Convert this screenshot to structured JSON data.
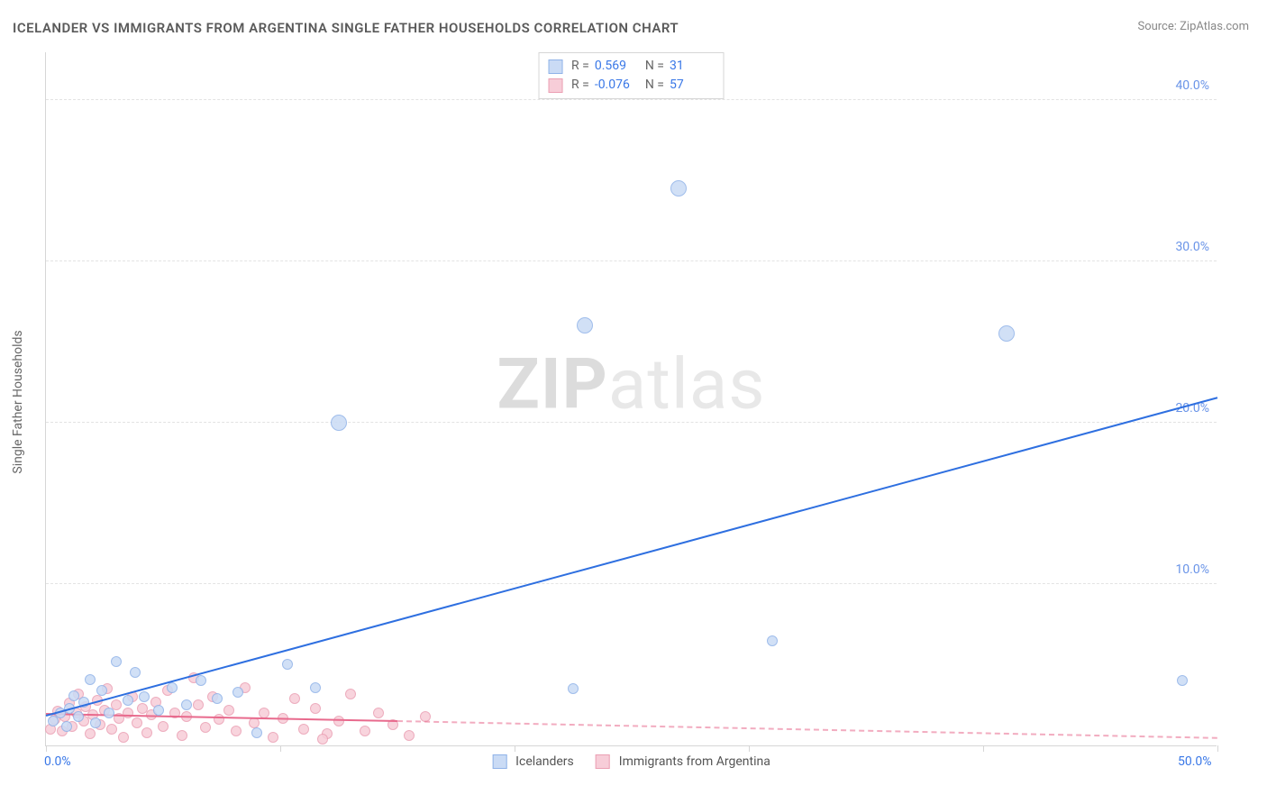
{
  "title": "ICELANDER VS IMMIGRANTS FROM ARGENTINA SINGLE FATHER HOUSEHOLDS CORRELATION CHART",
  "source_prefix": "Source: ",
  "source_name": "ZipAtlas.com",
  "y_axis_title": "Single Father Households",
  "watermark_bold": "ZIP",
  "watermark_rest": "atlas",
  "chart": {
    "type": "scatter",
    "xlim": [
      0,
      50
    ],
    "ylim": [
      0,
      43
    ],
    "x_ticks": [
      0,
      10,
      20,
      30,
      40,
      50
    ],
    "y_ticks": [
      10,
      20,
      30,
      40
    ],
    "x_tick_labels": {
      "0": "0.0%",
      "50": "50.0%"
    },
    "y_tick_label_suffix": "%",
    "tick_color_x0": "#3a78e7",
    "tick_color_x50": "#3a78e7",
    "tick_color_y": "#6a94e8",
    "grid_color": "#e3e3e3",
    "background_color": "#ffffff",
    "marker_radius_small": 6,
    "marker_radius_big": 9,
    "line_width": 2
  },
  "series": [
    {
      "id": "icelanders",
      "label": "Icelanders",
      "fill": "#cadbf5",
      "stroke": "#8fb2e8",
      "line_color": "#2e6fe0",
      "R": "0.569",
      "N": "31",
      "trend": {
        "x1": 0,
        "y1": 1.8,
        "x2": 50,
        "y2": 21.5,
        "dash_from_x": null
      },
      "points": [
        [
          0.3,
          1.5
        ],
        [
          0.6,
          2.0
        ],
        [
          0.9,
          1.2
        ],
        [
          1.0,
          2.3
        ],
        [
          1.2,
          3.1
        ],
        [
          1.4,
          1.8
        ],
        [
          1.6,
          2.7
        ],
        [
          1.9,
          4.1
        ],
        [
          2.1,
          1.4
        ],
        [
          2.4,
          3.4
        ],
        [
          2.7,
          2.0
        ],
        [
          3.0,
          5.2
        ],
        [
          3.5,
          2.8
        ],
        [
          3.8,
          4.5
        ],
        [
          4.2,
          3.0
        ],
        [
          4.8,
          2.2
        ],
        [
          5.4,
          3.6
        ],
        [
          6.0,
          2.5
        ],
        [
          6.6,
          4.0
        ],
        [
          7.3,
          2.9
        ],
        [
          8.2,
          3.3
        ],
        [
          9.0,
          0.8
        ],
        [
          10.3,
          5.0
        ],
        [
          11.5,
          3.6
        ],
        [
          12.5,
          20.0
        ],
        [
          23.0,
          26.0
        ],
        [
          22.5,
          3.5
        ],
        [
          27.0,
          34.5
        ],
        [
          31.0,
          6.5
        ],
        [
          41.0,
          25.5
        ],
        [
          48.5,
          4.0
        ]
      ]
    },
    {
      "id": "argentina",
      "label": "Immigrants from Argentina",
      "fill": "#f7cdd8",
      "stroke": "#eb9fb3",
      "line_color": "#e86a8d",
      "R": "-0.076",
      "N": "57",
      "trend": {
        "x1": 0,
        "y1": 1.9,
        "x2": 50,
        "y2": 0.4,
        "dash_from_x": 15
      },
      "points": [
        [
          0.2,
          1.0
        ],
        [
          0.4,
          1.6
        ],
        [
          0.5,
          2.1
        ],
        [
          0.7,
          0.9
        ],
        [
          0.8,
          1.8
        ],
        [
          1.0,
          2.6
        ],
        [
          1.1,
          1.2
        ],
        [
          1.3,
          2.0
        ],
        [
          1.4,
          3.2
        ],
        [
          1.6,
          1.5
        ],
        [
          1.7,
          2.4
        ],
        [
          1.9,
          0.7
        ],
        [
          2.0,
          1.9
        ],
        [
          2.2,
          2.8
        ],
        [
          2.3,
          1.3
        ],
        [
          2.5,
          2.2
        ],
        [
          2.6,
          3.5
        ],
        [
          2.8,
          1.0
        ],
        [
          3.0,
          2.5
        ],
        [
          3.1,
          1.7
        ],
        [
          3.3,
          0.5
        ],
        [
          3.5,
          2.0
        ],
        [
          3.7,
          3.0
        ],
        [
          3.9,
          1.4
        ],
        [
          4.1,
          2.3
        ],
        [
          4.3,
          0.8
        ],
        [
          4.5,
          1.9
        ],
        [
          4.7,
          2.7
        ],
        [
          5.0,
          1.2
        ],
        [
          5.2,
          3.4
        ],
        [
          5.5,
          2.0
        ],
        [
          5.8,
          0.6
        ],
        [
          6.0,
          1.8
        ],
        [
          6.3,
          4.2
        ],
        [
          6.5,
          2.5
        ],
        [
          6.8,
          1.1
        ],
        [
          7.1,
          3.0
        ],
        [
          7.4,
          1.6
        ],
        [
          7.8,
          2.2
        ],
        [
          8.1,
          0.9
        ],
        [
          8.5,
          3.6
        ],
        [
          8.9,
          1.4
        ],
        [
          9.3,
          2.0
        ],
        [
          9.7,
          0.5
        ],
        [
          10.1,
          1.7
        ],
        [
          10.6,
          2.9
        ],
        [
          11.0,
          1.0
        ],
        [
          11.5,
          2.3
        ],
        [
          12.0,
          0.7
        ],
        [
          12.5,
          1.5
        ],
        [
          13.0,
          3.2
        ],
        [
          13.6,
          0.9
        ],
        [
          14.2,
          2.0
        ],
        [
          14.8,
          1.3
        ],
        [
          15.5,
          0.6
        ],
        [
          16.2,
          1.8
        ],
        [
          11.8,
          0.4
        ]
      ]
    }
  ],
  "legend_labels": {
    "R": "R =",
    "N": "N ="
  }
}
